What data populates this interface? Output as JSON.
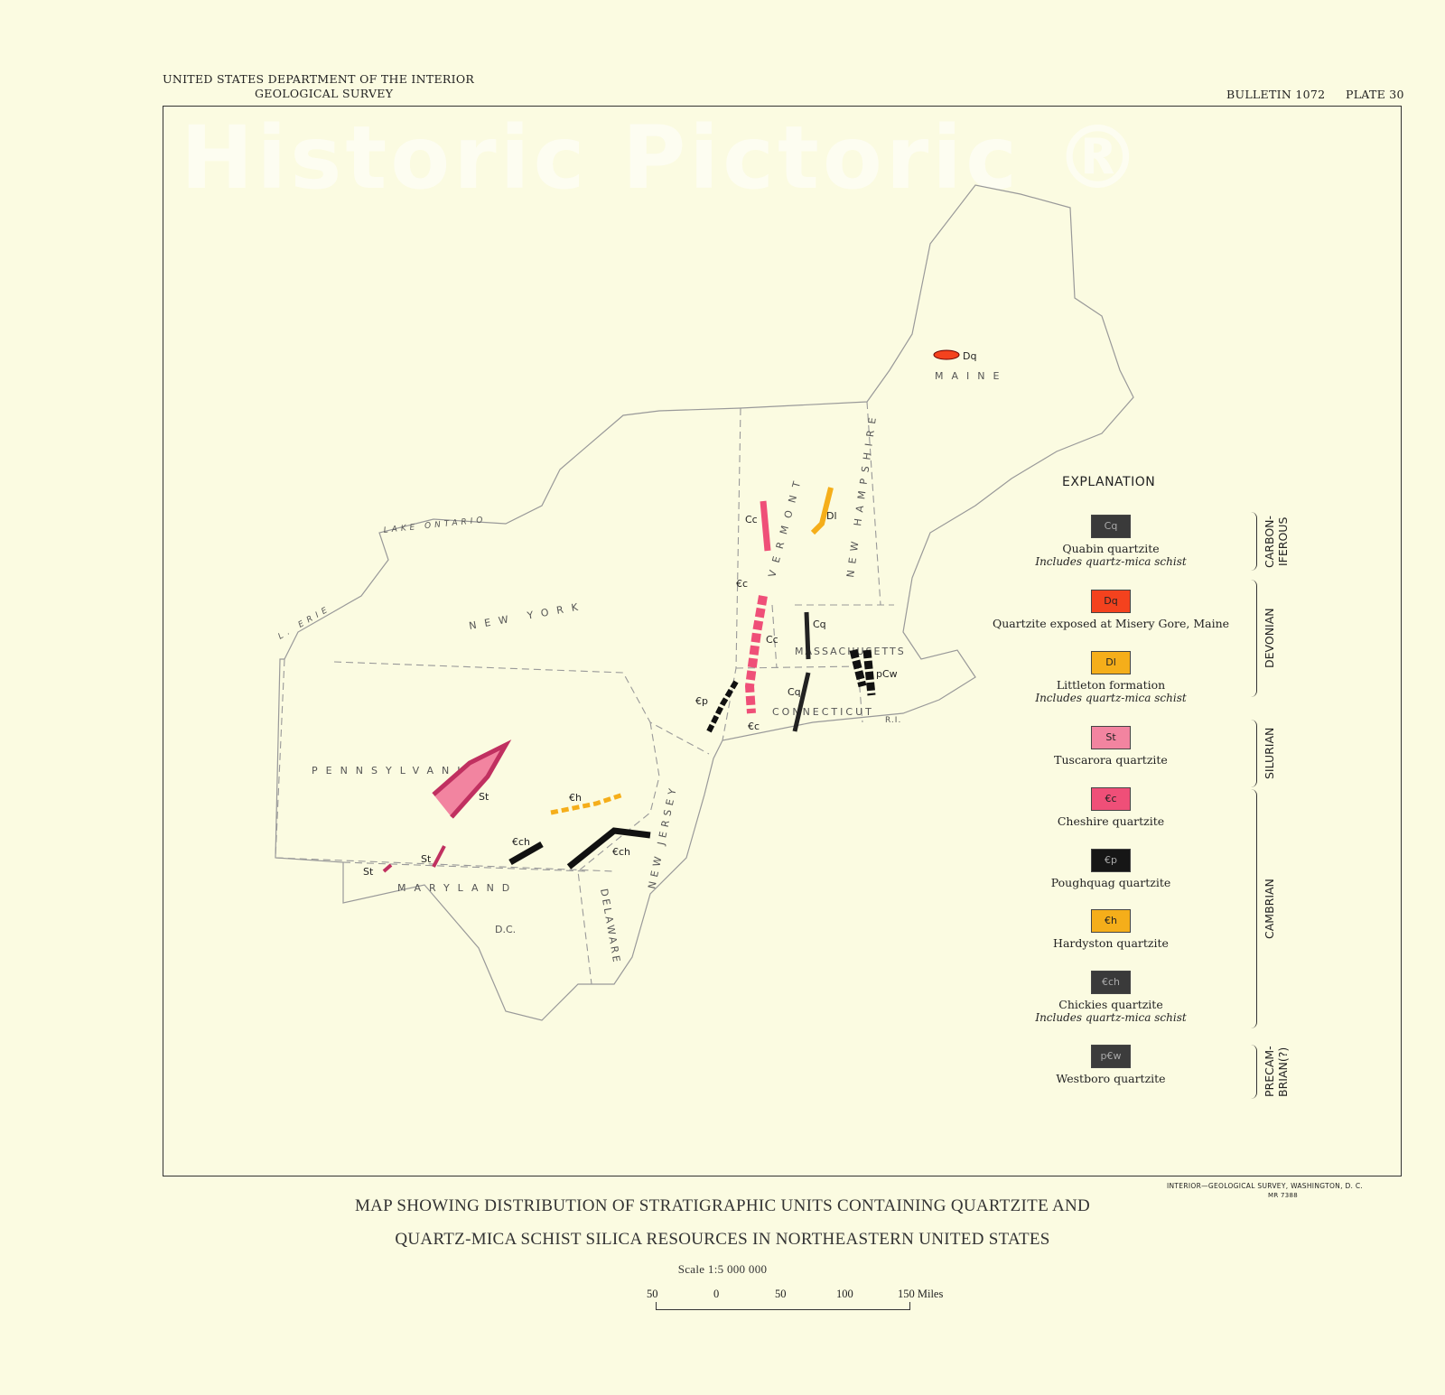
{
  "header": {
    "left_line1": "UNITED STATES DEPARTMENT OF THE INTERIOR",
    "left_line2": "GEOLOGICAL SURVEY",
    "bulletin": "BULLETIN 1072",
    "plate": "PLATE 30"
  },
  "map_labels": {
    "maine": "MAINE",
    "new_hampshire": "NEW HAMPSHIRE",
    "vermont": "VERMONT",
    "new_york": "NEW YORK",
    "massachusetts": "MASSACHUSETTS",
    "connecticut": "CONNECTICUT",
    "rhode_island": "R.I.",
    "pennsylvania": "PENNSYLVANIA",
    "new_jersey": "NEW JERSEY",
    "maryland": "MARYLAND",
    "delaware": "DELAWARE",
    "dc": "D.C.",
    "lake_ontario": "LAKE ONTARIO",
    "lake_erie": "L. ERIE"
  },
  "unit_labels": [
    "Dq",
    "Dl",
    "Cc",
    "Cc",
    "€c",
    "Cq",
    "Cq",
    "pCw",
    "€p",
    "€c",
    "St",
    "St",
    "St",
    "€h",
    "€ch",
    "€ch"
  ],
  "legend": {
    "title": "EXPLANATION",
    "items": [
      {
        "code": "Cq",
        "name": "Quabin quartzite",
        "sub": "Includes quartz-mica schist",
        "color": "#3a3a3a"
      },
      {
        "code": "Dq",
        "name": "Quartzite  exposed at Misery Gore, Maine",
        "sub": "",
        "color": "#f4421e"
      },
      {
        "code": "Dl",
        "name": "Littleton formation",
        "sub": "Includes quartz-mica schist",
        "color": "#f5ae1a"
      },
      {
        "code": "St",
        "name": "Tuscarora quartzite",
        "sub": "",
        "color": "#f284a0"
      },
      {
        "code": "€c",
        "name": "Cheshire quartzite",
        "sub": "",
        "color": "#ef4f78"
      },
      {
        "code": "€p",
        "name": "Poughquag quartzite",
        "sub": "",
        "color": "#161616"
      },
      {
        "code": "€h",
        "name": "Hardyston quartzite",
        "sub": "",
        "color": "#f5ae1a"
      },
      {
        "code": "€ch",
        "name": "Chickies quartzite",
        "sub": "Includes quartz-mica schist",
        "color": "#3a3a3a"
      },
      {
        "code": "p€w",
        "name": "Westboro quartzite",
        "sub": "",
        "color": "#3c3c3c"
      }
    ],
    "eras": [
      "CARBON-\nIFEROUS",
      "DEVONIAN",
      "SILURIAN",
      "CAMBRIAN",
      "PRECAM-\nBRIAN(?)"
    ]
  },
  "footer": {
    "imprint": "INTERIOR—GEOLOGICAL SURVEY, WASHINGTON, D. C.",
    "mr": "MR 7388",
    "title1": "MAP SHOWING DISTRIBUTION OF STRATIGRAPHIC UNITS CONTAINING QUARTZITE AND",
    "title2": "QUARTZ-MICA SCHIST SILICA RESOURCES IN NORTHEASTERN UNITED STATES",
    "scale": "Scale 1:5 000 000",
    "scale_ticks": [
      "50",
      "0",
      "50",
      "100",
      "150 Miles"
    ],
    "watermark": "Historic Pictoric ®"
  }
}
